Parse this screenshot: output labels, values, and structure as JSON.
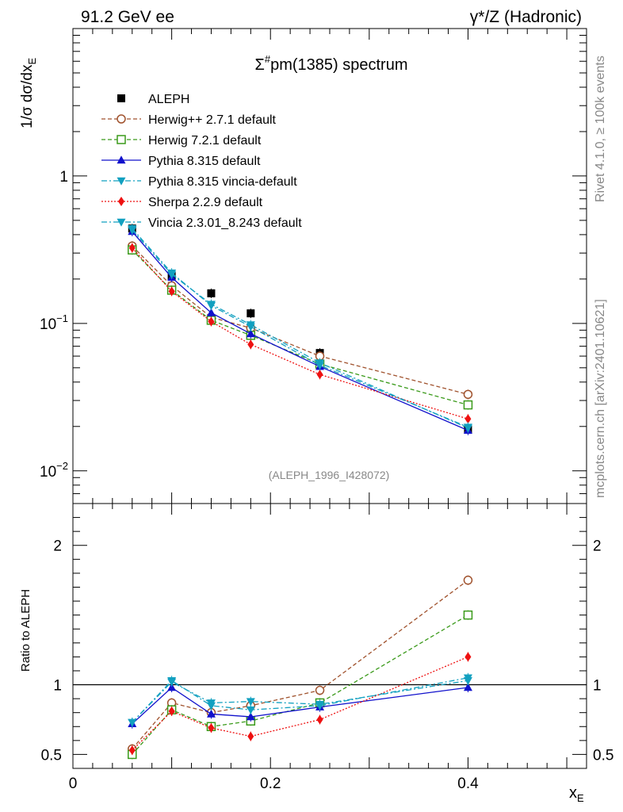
{
  "header": {
    "left": "91.2 GeV ee",
    "right": "γ*/Z (Hadronic)"
  },
  "side_labels": {
    "rivet": "Rivet 4.1.0, ≥ 100k events",
    "mcplots": "mcplots.cern.ch [arXiv:2401.10621]"
  },
  "chart_data": [
    {
      "type": "scatter",
      "panel": "main",
      "title_sigma": "Σ",
      "title_sup": "#",
      "title_rest": "pm(1385) spectrum",
      "ylabel_prefix": "1/σ  dσ/dx",
      "ylabel_sub": "E",
      "yscale": "log",
      "ylim": [
        0.006,
        10
      ],
      "xlim": [
        0,
        0.52
      ],
      "ytick_labels": [
        {
          "value": 1,
          "base": "1",
          "exp": ""
        },
        {
          "value": 0.1,
          "base": "10",
          "exp": "−1"
        },
        {
          "value": 0.01,
          "base": "10",
          "exp": "−2"
        }
      ],
      "annotation": "(ALEPH_1996_I428072)",
      "x": [
        0.06,
        0.1,
        0.14,
        0.18,
        0.25,
        0.4
      ],
      "series": [
        {
          "name": "ALEPH",
          "color": "#000000",
          "marker": "square-filled",
          "dash": "none",
          "values": [
            0.44,
            0.21,
            0.16,
            0.117,
            0.063,
            0.019
          ]
        },
        {
          "name": "Herwig++ 2.7.1 default",
          "color": "#a0522d",
          "marker": "circle-open",
          "dash": "dashed",
          "values": [
            0.335,
            0.18,
            0.11,
            0.093,
            0.06,
            0.033
          ]
        },
        {
          "name": "Herwig 7.2.1 default",
          "color": "#3a9a1a",
          "marker": "square-open",
          "dash": "dashed",
          "values": [
            0.315,
            0.168,
            0.105,
            0.083,
            0.053,
            0.028
          ]
        },
        {
          "name": "Pythia 8.315 default",
          "color": "#1111cc",
          "marker": "triangle-up-filled",
          "dash": "solid",
          "values": [
            0.42,
            0.205,
            0.118,
            0.085,
            0.051,
            0.0188
          ]
        },
        {
          "name": "Pythia 8.315 vincia-default",
          "color": "#12a0c0",
          "marker": "triangle-down-filled",
          "dash": "dashdot",
          "values": [
            0.43,
            0.215,
            0.135,
            0.098,
            0.054,
            0.0195
          ]
        },
        {
          "name": "Sherpa 2.2.9 default",
          "color": "#ee1111",
          "marker": "diamond-filled",
          "dash": "dotted",
          "values": [
            0.325,
            0.165,
            0.103,
            0.072,
            0.045,
            0.0225
          ]
        },
        {
          "name": "Vincia 2.3.01_8.243 default",
          "color": "#12a0c0",
          "marker": "triangle-down-filled",
          "dash": "dashdot",
          "values": [
            0.44,
            0.22,
            0.132,
            0.095,
            0.052,
            0.0198
          ]
        }
      ]
    },
    {
      "type": "scatter",
      "panel": "ratio",
      "ylabel": "Ratio to ALEPH",
      "ylim": [
        0.4,
        2.3
      ],
      "xlim": [
        0,
        0.52
      ],
      "xlabel": "x",
      "xlabel_sub": "E",
      "xtick_labels": [
        {
          "value": 0,
          "label": "0"
        },
        {
          "value": 0.2,
          "label": "0.2"
        },
        {
          "value": 0.4,
          "label": "0.4"
        }
      ],
      "ytick_labels": [
        {
          "value": 0.5,
          "label": "0.5"
        },
        {
          "value": 1,
          "label": "1"
        },
        {
          "value": 2,
          "label": "2"
        }
      ],
      "reference_line": 1,
      "x": [
        0.06,
        0.1,
        0.14,
        0.18,
        0.25,
        0.4
      ],
      "series": [
        {
          "name": "Herwig++ 2.7.1 default",
          "color": "#a0522d",
          "marker": "circle-open",
          "dash": "dashed",
          "values": [
            0.54,
            0.87,
            0.8,
            0.85,
            0.96,
            1.75
          ]
        },
        {
          "name": "Herwig 7.2.1 default",
          "color": "#3a9a1a",
          "marker": "square-open",
          "dash": "dashed",
          "values": [
            0.5,
            0.82,
            0.7,
            0.74,
            0.87,
            1.5
          ]
        },
        {
          "name": "Pythia 8.315 default",
          "color": "#1111cc",
          "marker": "triangle-up-filled",
          "dash": "solid",
          "values": [
            0.72,
            0.98,
            0.79,
            0.77,
            0.84,
            0.98
          ]
        },
        {
          "name": "Pythia 8.315 vincia-default",
          "color": "#12a0c0",
          "marker": "triangle-down-filled",
          "dash": "dashdot",
          "values": [
            0.73,
            1.02,
            0.87,
            0.88,
            0.86,
            1.03
          ]
        },
        {
          "name": "Sherpa 2.2.9 default",
          "color": "#ee1111",
          "marker": "diamond-filled",
          "dash": "dotted",
          "values": [
            0.53,
            0.81,
            0.69,
            0.63,
            0.75,
            1.2
          ]
        },
        {
          "name": "Vincia 2.3.01_8.243 default",
          "color": "#12a0c0",
          "marker": "triangle-down-filled",
          "dash": "dashdot",
          "values": [
            0.73,
            1.03,
            0.85,
            0.82,
            0.85,
            1.05
          ]
        }
      ]
    }
  ]
}
